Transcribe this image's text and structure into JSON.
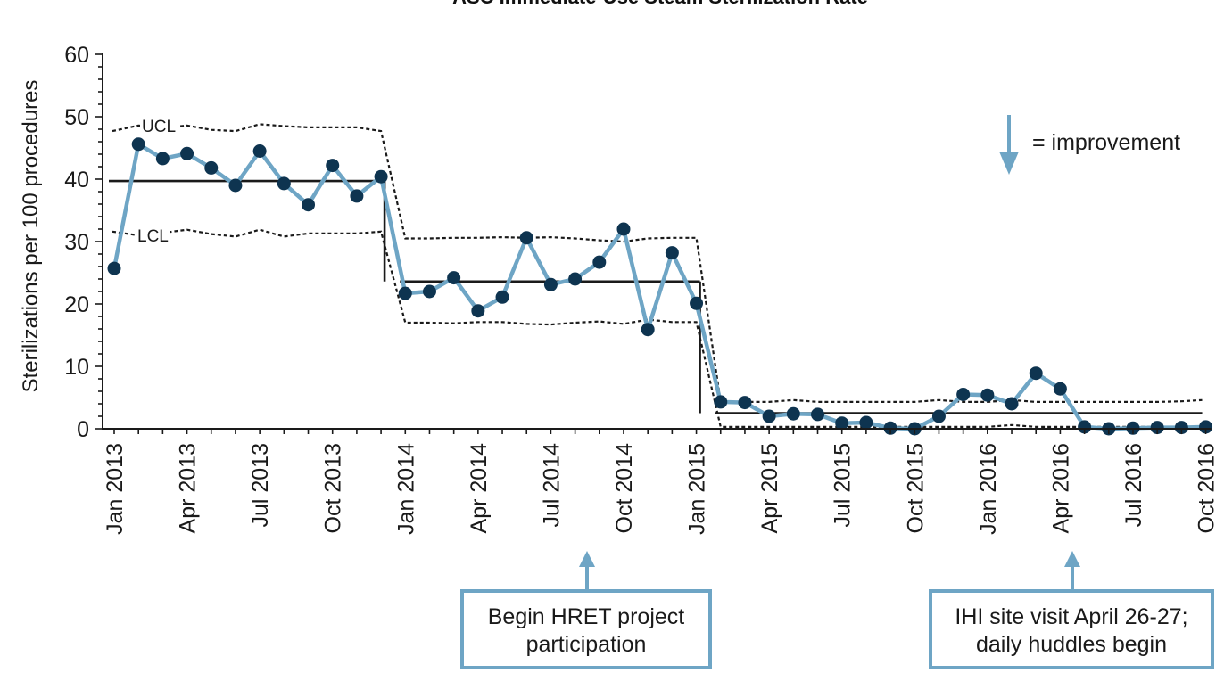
{
  "chart_data": {
    "type": "line",
    "title": "ASC Immediate-Use Steam Sterilization Rate",
    "ylabel": "Sterilizations per 100 procedures",
    "xlabel": "",
    "ylim": [
      0,
      60
    ],
    "yticks": [
      "0",
      "10",
      "20",
      "30",
      "40",
      "50",
      "60"
    ],
    "xtick_labels": [
      "Jan 2013",
      "Apr 2013",
      "Jul 2013",
      "Oct 2013",
      "Jan 2014",
      "Apr 2014",
      "Jul 2014",
      "Oct 2014",
      "Jan 2015",
      "Apr 2015",
      "Jul 2015",
      "Oct 2015",
      "Jan 2016",
      "Apr 2016",
      "Jul 2016",
      "Oct 2016"
    ],
    "x": [
      "Jan 2013",
      "Feb 2013",
      "Mar 2013",
      "Apr 2013",
      "May 2013",
      "Jun 2013",
      "Jul 2013",
      "Aug 2013",
      "Sep 2013",
      "Oct 2013",
      "Nov 2013",
      "Dec 2013",
      "Jan 2014",
      "Feb 2014",
      "Mar 2014",
      "Apr 2014",
      "May 2014",
      "Jun 2014",
      "Jul 2014",
      "Aug 2014",
      "Sep 2014",
      "Oct 2014",
      "Nov 2014",
      "Dec 2014",
      "Jan 2015",
      "Feb 2015",
      "Mar 2015",
      "Apr 2015",
      "May 2015",
      "Jun 2015",
      "Jul 2015",
      "Aug 2015",
      "Sep 2015",
      "Oct 2015",
      "Nov 2015",
      "Dec 2015",
      "Jan 2016",
      "Feb 2016",
      "Mar 2016",
      "Apr 2016",
      "May 2016",
      "Jun 2016",
      "Jul 2016",
      "Aug 2016",
      "Sep 2016",
      "Oct 2016"
    ],
    "series": [
      {
        "color": "#6ea5c5",
        "marker_color": "#0e3450",
        "values": [
          25.7,
          45.6,
          43.3,
          44.1,
          41.8,
          39.0,
          44.5,
          39.3,
          35.9,
          42.2,
          37.3,
          40.4,
          21.7,
          22.0,
          24.2,
          18.9,
          21.1,
          30.6,
          23.1,
          24.0,
          26.7,
          32.0,
          15.9,
          28.2,
          20.1,
          4.3,
          4.2,
          2.0,
          2.4,
          2.3,
          0.9,
          1.0,
          0.1,
          0.0,
          2.0,
          5.5,
          5.4,
          4.0,
          8.9,
          6.4,
          0.3,
          0.0,
          0.1,
          0.2,
          0.2,
          0.3
        ]
      }
    ],
    "center_line": [
      {
        "from": "Jan 2013",
        "to": "Dec 2013",
        "value": 39.7
      },
      {
        "from": "Jan 2014",
        "to": "Jan 2015",
        "value": 23.6
      },
      {
        "from": "Feb 2015",
        "to": "Oct 2016",
        "value": 2.5
      }
    ],
    "ucl": [
      47.7,
      48.6,
      48.2,
      48.6,
      47.9,
      47.7,
      48.8,
      48.5,
      48.3,
      48.3,
      48.3,
      47.7,
      30.5,
      30.5,
      30.6,
      30.6,
      30.7,
      30.6,
      30.7,
      30.5,
      30.2,
      30.0,
      30.5,
      30.6,
      30.6,
      4.3,
      4.3,
      4.3,
      4.6,
      4.3,
      4.3,
      4.3,
      4.3,
      4.3,
      4.6,
      4.3,
      4.3,
      4.6,
      4.3,
      4.3,
      4.3,
      4.3,
      4.3,
      4.3,
      4.4,
      4.6
    ],
    "lcl": [
      31.6,
      31.0,
      31.4,
      31.9,
      31.2,
      30.8,
      31.9,
      30.8,
      31.3,
      31.3,
      31.3,
      31.6,
      17.0,
      17.0,
      16.9,
      17.1,
      17.1,
      16.8,
      16.7,
      17.0,
      17.2,
      16.8,
      17.5,
      17.1,
      17.1,
      0.3,
      0.3,
      0.3,
      0.3,
      0.3,
      0.3,
      0.3,
      0.3,
      0.3,
      0.3,
      0.3,
      0.3,
      0.6,
      0.3,
      0.3,
      0.3,
      0.3,
      0.3,
      0.3,
      0.3,
      0.3
    ],
    "limit_labels": {
      "ucl": "UCL",
      "lcl": "LCL"
    },
    "legend": {
      "text": "= improvement",
      "icon": "down-arrow-icon",
      "placement": "top-right"
    },
    "annotations": [
      {
        "text_lines": [
          "Begin HRET project",
          "participation"
        ],
        "target": "Aug 2014"
      },
      {
        "text_lines": [
          "IHI site visit April 26-27;",
          "daily huddles begin"
        ],
        "target": "May 2016"
      }
    ],
    "colors": {
      "line": "#6ea5c5",
      "marker": "#0e3450",
      "center_line": "#1a1a1a",
      "limits": "#1a1a1a",
      "annotation": "#6ea5c5"
    },
    "grid": false
  }
}
